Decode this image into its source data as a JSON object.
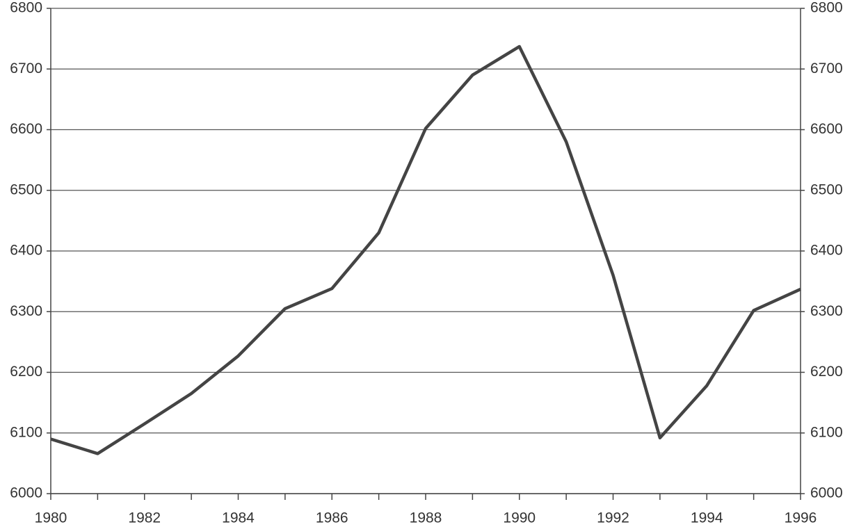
{
  "chart_data": {
    "type": "line",
    "x": [
      1980,
      1981,
      1982,
      1983,
      1984,
      1985,
      1986,
      1987,
      1988,
      1989,
      1990,
      1991,
      1992,
      1993,
      1994,
      1995,
      1996
    ],
    "series": [
      {
        "color": "#444444",
        "values": [
          6090,
          6066,
          6115,
          6165,
          6227,
          6305,
          6338,
          6430,
          6602,
          6690,
          6737,
          6580,
          6360,
          6092,
          6178,
          6302,
          6337
        ]
      }
    ],
    "xlim": [
      1980,
      1996
    ],
    "xticks": [
      1980,
      1982,
      1984,
      1986,
      1988,
      1990,
      1992,
      1994,
      1996
    ],
    "ylim": [
      6000,
      6800
    ],
    "yticks": [
      6000,
      6100,
      6200,
      6300,
      6400,
      6500,
      6600,
      6700,
      6800
    ],
    "y2lim": [
      6000,
      6800
    ],
    "y2ticks": [
      6000,
      6100,
      6200,
      6300,
      6400,
      6500,
      6600,
      6700,
      6800
    ],
    "grid": true
  }
}
